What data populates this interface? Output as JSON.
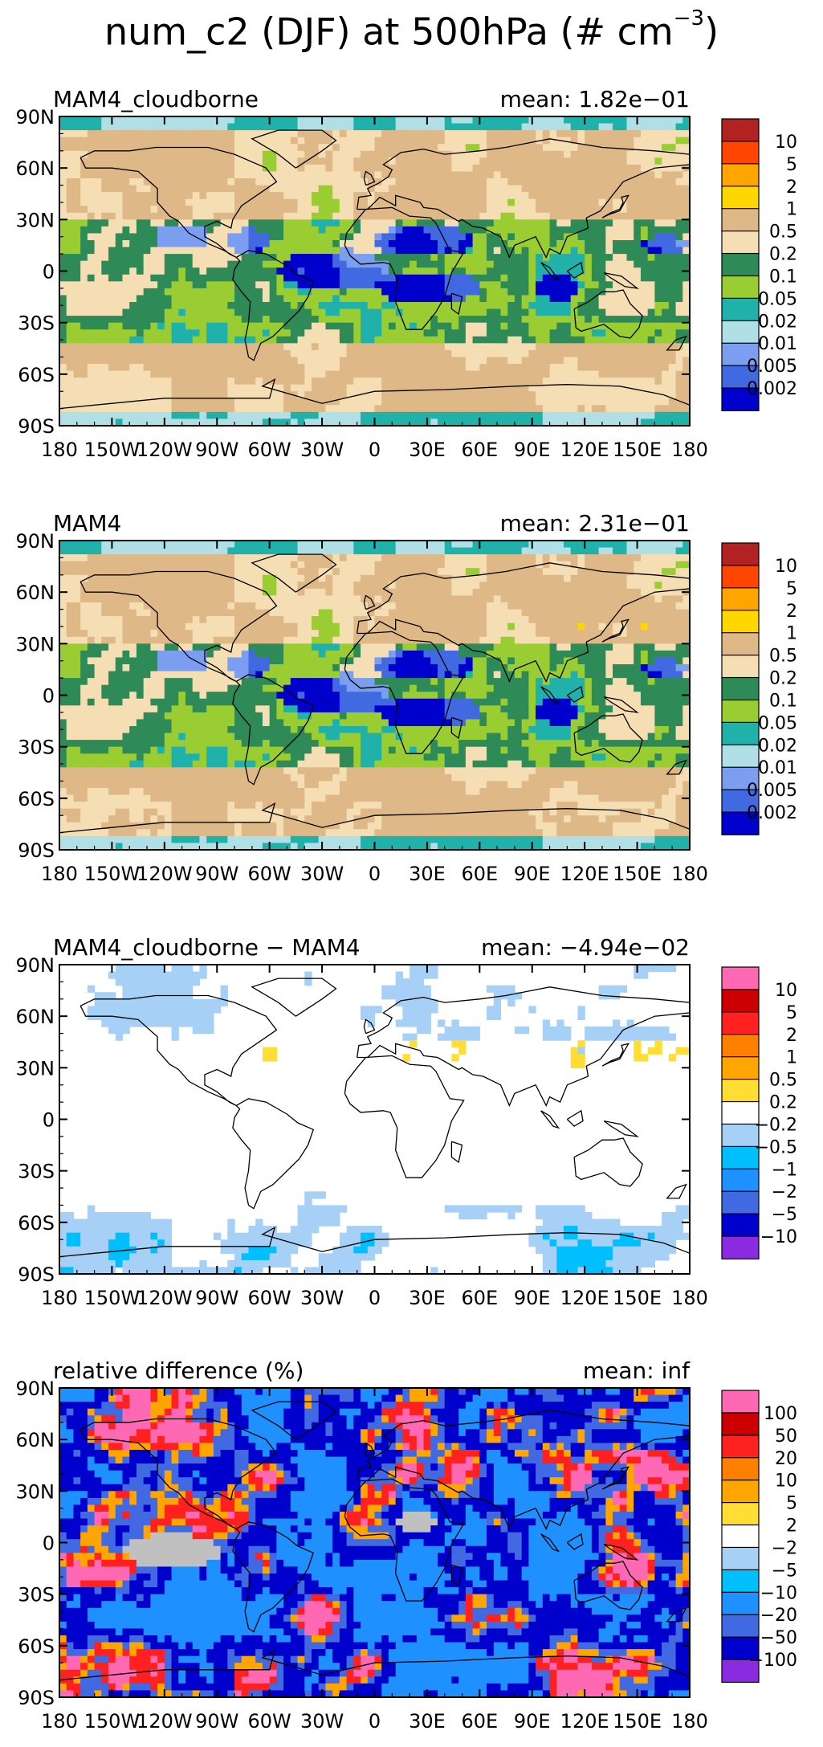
{
  "figure": {
    "title_prefix": "num_c2 (DJF) at 500hPa (# cm",
    "title_exponent": "−3",
    "title_suffix": ")"
  },
  "chart_data": [
    {
      "type": "heatmap",
      "panel_title": "MAM4_cloudborne",
      "mean_label": "mean:",
      "mean_value": "1.82e−01",
      "x_tick_labels": [
        "180",
        "150W",
        "120W",
        "90W",
        "60W",
        "30W",
        "0",
        "30E",
        "60E",
        "90E",
        "120E",
        "150E",
        "180"
      ],
      "y_tick_labels": [
        "90N",
        "60N",
        "30N",
        "0",
        "30S",
        "60S",
        "90S"
      ],
      "xlim": [
        -180,
        180
      ],
      "ylim": [
        -90,
        90
      ],
      "colorbar_labels": [
        "10",
        "5",
        "2",
        "1",
        "0.5",
        "0.2",
        "0.1",
        "0.05",
        "0.02",
        "0.01",
        "0.005",
        "0.002"
      ],
      "colorbar_colors": [
        "#b22222",
        "#ff4500",
        "#ffa500",
        "#ffd700",
        "#deb887",
        "#f5deb3",
        "#2e8b57",
        "#9acd32",
        "#20b2aa",
        "#b0e0e6",
        "#7b9ef0",
        "#4169e1",
        "#0000cd"
      ],
      "field_pattern": "absolute"
    },
    {
      "type": "heatmap",
      "panel_title": "MAM4",
      "mean_label": "mean:",
      "mean_value": "2.31e−01",
      "x_tick_labels": [
        "180",
        "150W",
        "120W",
        "90W",
        "60W",
        "30W",
        "0",
        "30E",
        "60E",
        "90E",
        "120E",
        "150E",
        "180"
      ],
      "y_tick_labels": [
        "90N",
        "60N",
        "30N",
        "0",
        "30S",
        "60S",
        "90S"
      ],
      "xlim": [
        -180,
        180
      ],
      "ylim": [
        -90,
        90
      ],
      "colorbar_labels": [
        "10",
        "5",
        "2",
        "1",
        "0.5",
        "0.2",
        "0.1",
        "0.05",
        "0.02",
        "0.01",
        "0.005",
        "0.002"
      ],
      "colorbar_colors": [
        "#b22222",
        "#ff4500",
        "#ffa500",
        "#ffd700",
        "#deb887",
        "#f5deb3",
        "#2e8b57",
        "#9acd32",
        "#20b2aa",
        "#b0e0e6",
        "#7b9ef0",
        "#4169e1",
        "#0000cd"
      ],
      "field_pattern": "absolute2"
    },
    {
      "type": "heatmap",
      "panel_title": "MAM4_cloudborne − MAM4",
      "mean_label": "mean:",
      "mean_value": "−4.94e−02",
      "x_tick_labels": [
        "180",
        "150W",
        "120W",
        "90W",
        "60W",
        "30W",
        "0",
        "30E",
        "60E",
        "90E",
        "120E",
        "150E",
        "180"
      ],
      "y_tick_labels": [
        "90N",
        "60N",
        "30N",
        "0",
        "30S",
        "60S",
        "90S"
      ],
      "xlim": [
        -180,
        180
      ],
      "ylim": [
        -90,
        90
      ],
      "colorbar_labels": [
        "10",
        "5",
        "2",
        "1",
        "0.5",
        "0.2",
        "−0.2",
        "−0.5",
        "−1",
        "−2",
        "−5",
        "−10"
      ],
      "colorbar_colors": [
        "#ff69b4",
        "#cc0000",
        "#ff2020",
        "#ff7f00",
        "#ffa500",
        "#ffdd33",
        "#ffffff",
        "#a6d0f5",
        "#00bfff",
        "#1e90ff",
        "#4169e1",
        "#0000cd",
        "#8a2be2"
      ],
      "field_pattern": "diff"
    },
    {
      "type": "heatmap",
      "panel_title": "relative difference (%)",
      "mean_label": "mean:",
      "mean_value": "inf",
      "x_tick_labels": [
        "180",
        "150W",
        "120W",
        "90W",
        "60W",
        "30W",
        "0",
        "30E",
        "60E",
        "90E",
        "120E",
        "150E",
        "180"
      ],
      "y_tick_labels": [
        "90N",
        "60N",
        "30N",
        "0",
        "30S",
        "60S",
        "90S"
      ],
      "xlim": [
        -180,
        180
      ],
      "ylim": [
        -90,
        90
      ],
      "colorbar_labels": [
        "100",
        "50",
        "20",
        "10",
        "5",
        "2",
        "−2",
        "−5",
        "−10",
        "−20",
        "−50",
        "−100"
      ],
      "colorbar_colors": [
        "#ff69b4",
        "#cc0000",
        "#ff2020",
        "#ff7f00",
        "#ffa500",
        "#ffdd33",
        "#ffffff",
        "#a6d0f5",
        "#00bfff",
        "#1e90ff",
        "#4169e1",
        "#0000cd",
        "#8a2be2"
      ],
      "field_pattern": "reldiff"
    }
  ]
}
